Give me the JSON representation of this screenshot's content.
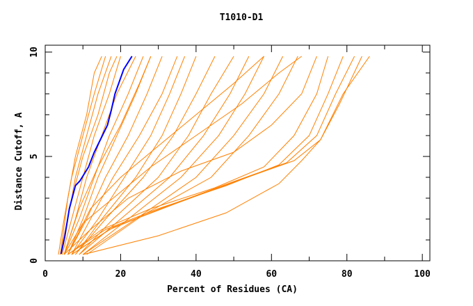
{
  "chart_data": {
    "type": "line",
    "title": "T1010-D1",
    "xlabel": "Percent of Residues (CA)",
    "ylabel": "Distance Cutoff, A",
    "xlim": [
      0,
      102
    ],
    "ylim": [
      0,
      10.33
    ],
    "x_ticks": [
      "0",
      "20",
      "40",
      "60",
      "80",
      "100"
    ],
    "x_tick_values": [
      0,
      20,
      40,
      60,
      80,
      100
    ],
    "y_ticks": [
      "0",
      "5",
      "10"
    ],
    "y_tick_values": [
      0,
      5,
      10
    ],
    "grid": false,
    "legend": "none",
    "colors": {
      "models": "#ff8000",
      "highlight": "#0000ff",
      "axis": "#000000"
    },
    "series": [
      {
        "color": "orange",
        "points": [
          [
            3.5,
            0.3
          ],
          [
            5,
            2
          ],
          [
            7,
            4
          ],
          [
            10,
            6
          ],
          [
            13,
            8
          ],
          [
            16,
            9.8
          ]
        ]
      },
      {
        "color": "orange",
        "points": [
          [
            4,
            0.3
          ],
          [
            6,
            2
          ],
          [
            8,
            4
          ],
          [
            11,
            6
          ],
          [
            14,
            8
          ],
          [
            17.5,
            9.8
          ]
        ]
      },
      {
        "color": "orange",
        "points": [
          [
            4.5,
            0.3
          ],
          [
            7,
            2
          ],
          [
            10,
            4
          ],
          [
            13,
            6
          ],
          [
            17,
            8
          ],
          [
            20,
            9.8
          ]
        ]
      },
      {
        "color": "orange",
        "points": [
          [
            5,
            0.3
          ],
          [
            8,
            2
          ],
          [
            11,
            4
          ],
          [
            15,
            6
          ],
          [
            19,
            8
          ],
          [
            24,
            9.8
          ]
        ]
      },
      {
        "color": "orange",
        "points": [
          [
            5,
            0.3
          ],
          [
            9,
            2
          ],
          [
            13,
            4
          ],
          [
            17,
            6
          ],
          [
            22,
            8
          ],
          [
            26,
            9.8
          ]
        ]
      },
      {
        "color": "orange",
        "points": [
          [
            6,
            0.3
          ],
          [
            10,
            2
          ],
          [
            14,
            4
          ],
          [
            19,
            6
          ],
          [
            24,
            8
          ],
          [
            28,
            9.8
          ]
        ]
      },
      {
        "color": "orange",
        "points": [
          [
            6,
            0.3
          ],
          [
            11,
            2
          ],
          [
            16,
            4
          ],
          [
            22,
            6
          ],
          [
            27,
            8
          ],
          [
            31,
            9.8
          ]
        ]
      },
      {
        "color": "orange",
        "points": [
          [
            7,
            0.3
          ],
          [
            12,
            2
          ],
          [
            18,
            4
          ],
          [
            25,
            6
          ],
          [
            31,
            8
          ],
          [
            35,
            9.8
          ]
        ]
      },
      {
        "color": "orange",
        "points": [
          [
            7,
            0.3
          ],
          [
            14,
            2
          ],
          [
            21,
            4
          ],
          [
            28,
            6
          ],
          [
            33,
            8
          ],
          [
            37,
            9.8
          ]
        ]
      },
      {
        "color": "orange",
        "points": [
          [
            8,
            0.3
          ],
          [
            15,
            2
          ],
          [
            24,
            4
          ],
          [
            31,
            6
          ],
          [
            36,
            8
          ],
          [
            40,
            9.8
          ]
        ]
      },
      {
        "color": "orange",
        "points": [
          [
            8,
            0.3
          ],
          [
            16,
            2
          ],
          [
            26,
            4
          ],
          [
            34,
            6
          ],
          [
            40,
            8
          ],
          [
            45,
            9.8
          ]
        ]
      },
      {
        "color": "orange",
        "points": [
          [
            9,
            0.3
          ],
          [
            18,
            2
          ],
          [
            30,
            4
          ],
          [
            38,
            6
          ],
          [
            44,
            8
          ],
          [
            50,
            9.8
          ]
        ]
      },
      {
        "color": "orange",
        "points": [
          [
            9,
            0.3
          ],
          [
            20,
            2
          ],
          [
            33,
            4
          ],
          [
            42,
            6
          ],
          [
            49,
            8
          ],
          [
            54,
            9.8
          ]
        ]
      },
      {
        "color": "orange",
        "points": [
          [
            10,
            0.3
          ],
          [
            22,
            2
          ],
          [
            36,
            4
          ],
          [
            46,
            6
          ],
          [
            53,
            8
          ],
          [
            58,
            9.8
          ]
        ]
      },
      {
        "color": "orange",
        "points": [
          [
            10,
            0.3
          ],
          [
            24,
            2
          ],
          [
            40,
            4
          ],
          [
            50,
            6
          ],
          [
            58,
            8
          ],
          [
            63,
            9.8
          ]
        ]
      },
      {
        "color": "orange",
        "points": [
          [
            11,
            0.3
          ],
          [
            26,
            2.2
          ],
          [
            44,
            4
          ],
          [
            54,
            6
          ],
          [
            62,
            8
          ],
          [
            67,
            9.8
          ]
        ]
      },
      {
        "color": "orange",
        "points": [
          [
            6,
            0.3
          ],
          [
            15,
            1.5
          ],
          [
            28,
            2.5
          ],
          [
            45,
            3.5
          ],
          [
            58,
            4.5
          ],
          [
            66,
            6
          ],
          [
            72,
            8
          ],
          [
            75,
            9.8
          ]
        ]
      },
      {
        "color": "orange",
        "points": [
          [
            6,
            0.3
          ],
          [
            16,
            1.5
          ],
          [
            30,
            2.5
          ],
          [
            48,
            3.6
          ],
          [
            62,
            4.6
          ],
          [
            70,
            6
          ],
          [
            75,
            8
          ],
          [
            79,
            9.8
          ]
        ]
      },
      {
        "color": "orange",
        "points": [
          [
            7,
            0.3
          ],
          [
            17,
            1.5
          ],
          [
            32,
            2.6
          ],
          [
            50,
            3.8
          ],
          [
            64,
            4.7
          ],
          [
            72,
            6
          ],
          [
            77,
            8
          ],
          [
            82,
            9.8
          ]
        ]
      },
      {
        "color": "orange",
        "points": [
          [
            7,
            0.3
          ],
          [
            18,
            1.6
          ],
          [
            34,
            2.7
          ],
          [
            52,
            3.9
          ],
          [
            66,
            4.8
          ],
          [
            73,
            5.8
          ],
          [
            79,
            8
          ],
          [
            86,
            9.8
          ]
        ]
      },
      {
        "color": "orange",
        "points": [
          [
            10,
            0.3
          ],
          [
            30,
            1.2
          ],
          [
            48,
            2.3
          ],
          [
            62,
            3.7
          ],
          [
            68,
            4.8
          ],
          [
            73,
            5.8
          ],
          [
            78,
            7.5
          ],
          [
            84,
            9.8
          ]
        ]
      },
      {
        "color": "orange",
        "points": [
          [
            5,
            0.3
          ],
          [
            12,
            1.5
          ],
          [
            22,
            3
          ],
          [
            36,
            4.3
          ],
          [
            50,
            5.2
          ],
          [
            60,
            6.5
          ],
          [
            68,
            8
          ],
          [
            72,
            9.8
          ]
        ]
      },
      {
        "color": "orange",
        "points": [
          [
            5,
            0.3
          ],
          [
            10,
            1.8
          ],
          [
            18,
            3
          ],
          [
            28,
            4.5
          ],
          [
            40,
            6
          ],
          [
            52,
            7.5
          ],
          [
            62,
            9
          ],
          [
            68,
            9.8
          ]
        ]
      },
      {
        "color": "orange",
        "points": [
          [
            6,
            0.3
          ],
          [
            12,
            2.5
          ],
          [
            20,
            4
          ],
          [
            30,
            5.5
          ],
          [
            40,
            7
          ],
          [
            50,
            8.5
          ],
          [
            58,
            9.8
          ]
        ]
      },
      {
        "color": "orange",
        "points": [
          [
            5,
            0.3
          ],
          [
            9,
            2.5
          ],
          [
            14,
            4.5
          ],
          [
            20,
            6.5
          ],
          [
            25,
            8.5
          ],
          [
            28,
            9.8
          ]
        ]
      },
      {
        "color": "orange",
        "points": [
          [
            4,
            0.3
          ],
          [
            7,
            3
          ],
          [
            10,
            5
          ],
          [
            14,
            7
          ],
          [
            17,
            9
          ],
          [
            19,
            9.8
          ]
        ]
      },
      {
        "color": "orange",
        "points": [
          [
            4,
            0.3
          ],
          [
            6,
            3
          ],
          [
            8,
            5
          ],
          [
            11,
            7
          ],
          [
            13,
            9
          ],
          [
            15,
            9.8
          ]
        ]
      },
      {
        "color": "blue",
        "points": [
          [
            4.2,
            0.33
          ],
          [
            5.2,
            1.17
          ],
          [
            6.4,
            2.5
          ],
          [
            8,
            3.6
          ],
          [
            9.2,
            3.83
          ],
          [
            11.5,
            4.5
          ],
          [
            13,
            5.2
          ],
          [
            14.7,
            5.83
          ],
          [
            16.5,
            6.5
          ],
          [
            17.5,
            7.2
          ],
          [
            18.5,
            8
          ],
          [
            20.8,
            9.17
          ],
          [
            23,
            9.8
          ]
        ]
      }
    ]
  }
}
